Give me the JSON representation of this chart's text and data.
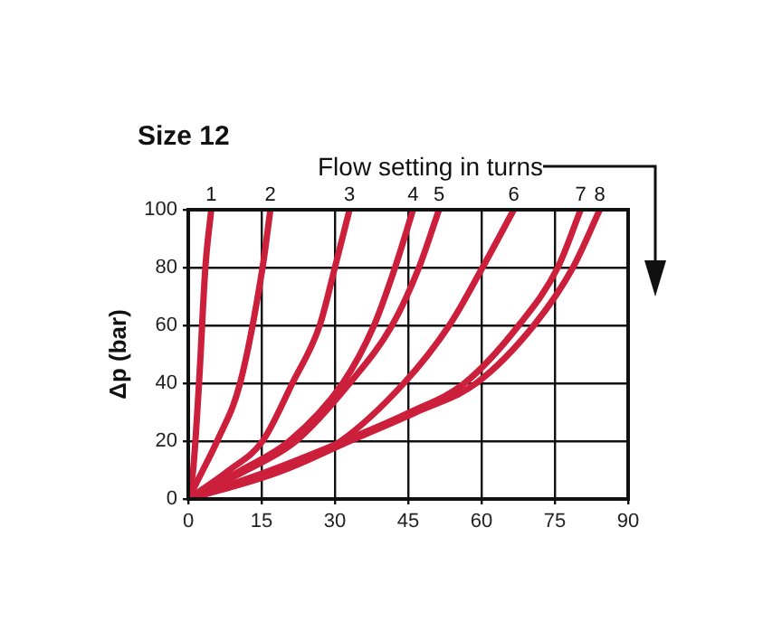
{
  "chart_data": {
    "type": "line",
    "title": "Size 12",
    "ylabel": "Δp (bar)",
    "annotations": [
      "Flow setting in turns"
    ],
    "xlim": [
      0,
      90
    ],
    "xticks": [
      0,
      15,
      30,
      45,
      60,
      75,
      90
    ],
    "ylim": [
      0,
      100
    ],
    "yticks": [
      0,
      20,
      40,
      60,
      80,
      100
    ],
    "grid": true,
    "legend": false,
    "marker": "none",
    "line_style": "solid",
    "series": [
      {
        "name": "1",
        "color": "#cc1f3c",
        "x": [
          0,
          1,
          2.2,
          3.5,
          4.7
        ],
        "values": [
          0,
          10,
          40,
          80,
          100
        ]
      },
      {
        "name": "2",
        "color": "#cc1f3c",
        "x": [
          0,
          3,
          5.9,
          10.6,
          15.2,
          16.8
        ],
        "values": [
          0,
          10,
          20,
          40,
          80,
          100
        ]
      },
      {
        "name": "3",
        "color": "#cc1f3c",
        "x": [
          0,
          8.4,
          15.2,
          21.3,
          26.9,
          30,
          33
        ],
        "values": [
          0,
          10,
          20,
          40,
          60,
          80,
          100
        ]
      },
      {
        "name": "4",
        "color": "#cc1f3c",
        "x": [
          0,
          10.9,
          20.7,
          31.6,
          38,
          42.3,
          46
        ],
        "values": [
          0,
          10,
          20,
          40,
          60,
          80,
          100
        ]
      },
      {
        "name": "5",
        "color": "#cc1f3c",
        "x": [
          0,
          12,
          22,
          33,
          41.7,
          47.2,
          51.3
        ],
        "values": [
          0,
          10,
          20,
          40,
          60,
          80,
          100
        ]
      },
      {
        "name": "6",
        "color": "#cc1f3c",
        "x": [
          0,
          19.5,
          31.2,
          44.1,
          53.4,
          60.2,
          66.6
        ],
        "values": [
          0,
          10,
          20,
          40,
          60,
          80,
          100
        ]
      },
      {
        "name": "7",
        "color": "#cc1f3c",
        "x": [
          0,
          17,
          31.8,
          45.4,
          56.5,
          67.6,
          75.6,
          80.3
        ],
        "values": [
          0,
          10,
          20,
          30,
          40,
          60,
          80,
          100
        ]
      },
      {
        "name": "8",
        "color": "#cc1f3c",
        "x": [
          0,
          19.5,
          33,
          46.6,
          58.9,
          70.7,
          78.7,
          84.2
        ],
        "values": [
          0,
          10,
          20,
          30,
          40,
          60,
          80,
          100
        ]
      }
    ]
  }
}
